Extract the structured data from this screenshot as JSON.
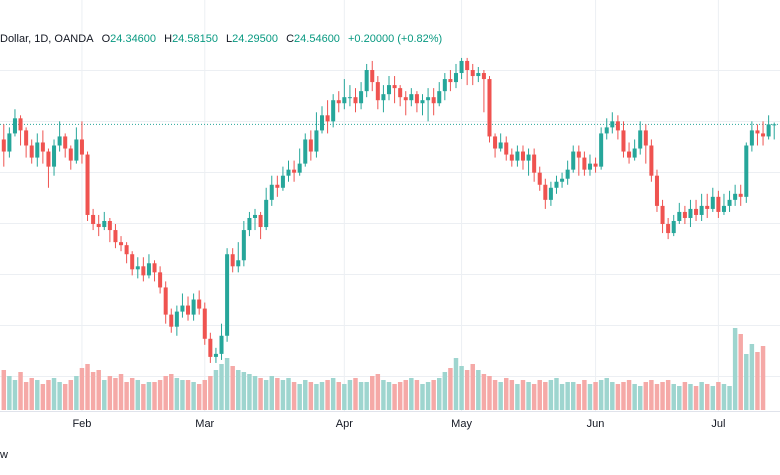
{
  "header": {
    "symbol": "Dollar, 1D, OANDA",
    "open_label": "O",
    "open": "24.34600",
    "high_label": "H",
    "high": "24.58150",
    "low_label": "L",
    "low": "24.29500",
    "close_label": "C",
    "close": "24.54600",
    "change": "+0.20000 (+0.82%)"
  },
  "footer": {
    "text": "w"
  },
  "colors": {
    "up": "#26a69a",
    "down": "#ef5350",
    "vol_up": "#9ed5cf",
    "vol_down": "#f5a9a7",
    "grid": "#eceff3",
    "last_price_line": "#26a69a"
  },
  "chart_data": {
    "type": "candlestick",
    "x_axis": {
      "tick_labels": [
        "Feb",
        "Mar",
        "Apr",
        "May",
        "Jun",
        "Jul"
      ],
      "tick_index": [
        14,
        36,
        61,
        82,
        106,
        128
      ]
    },
    "y_range": [
      20.45,
      25.45
    ],
    "last_price": 24.55,
    "candles": [
      [
        24.3,
        24.1,
        24.55,
        23.85
      ],
      [
        24.1,
        24.4,
        24.5,
        24.0
      ],
      [
        24.4,
        24.65,
        24.8,
        24.35
      ],
      [
        24.65,
        24.45,
        24.7,
        24.2
      ],
      [
        24.45,
        24.2,
        24.5,
        24.0
      ],
      [
        24.2,
        24.0,
        24.3,
        23.9
      ],
      [
        24.0,
        24.25,
        24.4,
        23.85
      ],
      [
        24.25,
        24.1,
        24.45,
        23.9
      ],
      [
        24.1,
        23.85,
        24.15,
        23.5
      ],
      [
        23.85,
        24.2,
        24.3,
        23.7
      ],
      [
        24.2,
        24.35,
        24.6,
        24.1
      ],
      [
        24.35,
        24.15,
        24.4,
        24.0
      ],
      [
        24.15,
        23.95,
        24.2,
        23.8
      ],
      [
        23.95,
        24.3,
        24.5,
        23.9
      ],
      [
        24.3,
        24.05,
        24.6,
        23.9
      ],
      [
        24.05,
        23.05,
        24.1,
        22.95
      ],
      [
        23.05,
        22.9,
        23.15,
        22.8
      ],
      [
        22.9,
        22.85,
        23.05,
        22.7
      ],
      [
        22.85,
        22.95,
        23.1,
        22.8
      ],
      [
        22.95,
        22.8,
        23.0,
        22.6
      ],
      [
        22.8,
        22.6,
        22.9,
        22.5
      ],
      [
        22.6,
        22.55,
        22.7,
        22.45
      ],
      [
        22.55,
        22.4,
        22.6,
        22.25
      ],
      [
        22.4,
        22.15,
        22.45,
        22.05
      ],
      [
        22.15,
        22.2,
        22.35,
        22.0
      ],
      [
        22.2,
        22.05,
        22.35,
        21.95
      ],
      [
        22.05,
        22.25,
        22.4,
        22.0
      ],
      [
        22.25,
        22.1,
        22.3,
        21.95
      ],
      [
        22.1,
        21.85,
        22.2,
        21.75
      ],
      [
        21.85,
        21.4,
        21.95,
        21.25
      ],
      [
        21.4,
        21.2,
        21.5,
        21.1
      ],
      [
        21.2,
        21.45,
        21.55,
        21.05
      ],
      [
        21.45,
        21.55,
        21.75,
        21.35
      ],
      [
        21.55,
        21.4,
        21.7,
        21.3
      ],
      [
        21.4,
        21.65,
        21.75,
        21.3
      ],
      [
        21.65,
        21.5,
        21.8,
        21.4
      ],
      [
        21.5,
        21.0,
        21.6,
        20.9
      ],
      [
        21.0,
        20.7,
        21.1,
        20.6
      ],
      [
        20.7,
        20.75,
        20.85,
        20.6
      ],
      [
        20.75,
        21.05,
        21.25,
        20.65
      ],
      [
        21.05,
        22.4,
        22.5,
        20.95
      ],
      [
        22.4,
        22.2,
        22.5,
        22.1
      ],
      [
        22.2,
        22.3,
        22.6,
        22.1
      ],
      [
        22.3,
        22.8,
        22.95,
        22.2
      ],
      [
        22.8,
        23.0,
        23.1,
        22.7
      ],
      [
        23.0,
        23.05,
        23.15,
        22.8
      ],
      [
        23.05,
        22.85,
        23.1,
        22.65
      ],
      [
        22.85,
        23.3,
        23.5,
        22.8
      ],
      [
        23.3,
        23.55,
        23.7,
        23.2
      ],
      [
        23.55,
        23.5,
        23.7,
        23.35
      ],
      [
        23.5,
        23.7,
        23.85,
        23.45
      ],
      [
        23.7,
        23.8,
        23.95,
        23.6
      ],
      [
        23.8,
        23.75,
        23.95,
        23.6
      ],
      [
        23.75,
        23.9,
        24.15,
        23.7
      ],
      [
        23.9,
        24.3,
        24.4,
        23.85
      ],
      [
        24.3,
        24.1,
        24.45,
        23.95
      ],
      [
        24.1,
        24.45,
        24.75,
        24.0
      ],
      [
        24.45,
        24.7,
        24.85,
        24.4
      ],
      [
        24.7,
        24.6,
        24.95,
        24.4
      ],
      [
        24.6,
        24.95,
        25.05,
        24.5
      ],
      [
        24.95,
        24.9,
        25.1,
        24.75
      ],
      [
        24.9,
        25.0,
        25.3,
        24.8
      ],
      [
        25.0,
        25.0,
        25.2,
        24.85
      ],
      [
        25.0,
        24.9,
        25.15,
        24.75
      ],
      [
        24.9,
        25.1,
        25.25,
        24.8
      ],
      [
        25.1,
        25.45,
        25.55,
        25.0
      ],
      [
        25.45,
        25.25,
        25.6,
        25.1
      ],
      [
        25.25,
        24.95,
        25.35,
        24.8
      ],
      [
        24.95,
        25.05,
        25.2,
        24.75
      ],
      [
        25.05,
        25.2,
        25.35,
        24.95
      ],
      [
        25.2,
        25.15,
        25.35,
        24.9
      ],
      [
        25.15,
        25.0,
        25.2,
        24.85
      ],
      [
        25.0,
        24.95,
        25.1,
        24.7
      ],
      [
        24.95,
        25.05,
        25.15,
        24.85
      ],
      [
        25.05,
        24.9,
        25.1,
        24.75
      ],
      [
        24.9,
        24.95,
        25.05,
        24.7
      ],
      [
        24.95,
        25.0,
        25.15,
        24.6
      ],
      [
        25.0,
        24.9,
        25.15,
        24.7
      ],
      [
        24.9,
        25.1,
        25.25,
        24.85
      ],
      [
        25.1,
        25.3,
        25.4,
        24.95
      ],
      [
        25.3,
        25.25,
        25.45,
        25.1
      ],
      [
        25.25,
        25.4,
        25.55,
        25.15
      ],
      [
        25.4,
        25.6,
        25.65,
        25.3
      ],
      [
        25.6,
        25.45,
        25.65,
        25.2
      ],
      [
        25.45,
        25.35,
        25.55,
        25.2
      ],
      [
        25.35,
        25.4,
        25.5,
        25.25
      ],
      [
        25.4,
        25.3,
        25.45,
        24.75
      ],
      [
        25.3,
        24.35,
        25.35,
        24.25
      ],
      [
        24.35,
        24.15,
        24.4,
        24.0
      ],
      [
        24.15,
        24.25,
        24.4,
        24.1
      ],
      [
        24.25,
        24.05,
        24.35,
        23.95
      ],
      [
        24.05,
        23.95,
        24.15,
        23.85
      ],
      [
        23.95,
        24.1,
        24.2,
        23.85
      ],
      [
        24.1,
        23.95,
        24.2,
        23.8
      ],
      [
        23.95,
        24.05,
        24.15,
        23.7
      ],
      [
        24.05,
        23.75,
        24.15,
        23.6
      ],
      [
        23.75,
        23.55,
        23.85,
        23.45
      ],
      [
        23.55,
        23.3,
        23.65,
        23.15
      ],
      [
        23.3,
        23.5,
        23.6,
        23.2
      ],
      [
        23.5,
        23.6,
        23.7,
        23.4
      ],
      [
        23.6,
        23.65,
        23.75,
        23.5
      ],
      [
        23.65,
        23.8,
        23.95,
        23.55
      ],
      [
        23.8,
        24.1,
        24.2,
        23.75
      ],
      [
        24.1,
        24.0,
        24.2,
        23.7
      ],
      [
        24.0,
        23.8,
        24.1,
        23.7
      ],
      [
        23.8,
        23.9,
        24.05,
        23.7
      ],
      [
        23.9,
        23.85,
        24.0,
        23.75
      ],
      [
        23.85,
        24.4,
        24.5,
        23.8
      ],
      [
        24.4,
        24.5,
        24.65,
        24.3
      ],
      [
        24.5,
        24.6,
        24.75,
        24.4
      ],
      [
        24.6,
        24.45,
        24.7,
        24.3
      ],
      [
        24.45,
        24.1,
        24.6,
        24.0
      ],
      [
        24.1,
        24.0,
        24.25,
        23.9
      ],
      [
        24.0,
        24.15,
        24.3,
        23.95
      ],
      [
        24.15,
        24.45,
        24.6,
        24.05
      ],
      [
        24.45,
        24.2,
        24.55,
        23.9
      ],
      [
        24.2,
        23.7,
        24.3,
        23.6
      ],
      [
        23.7,
        23.2,
        23.8,
        23.1
      ],
      [
        23.2,
        22.9,
        23.3,
        22.75
      ],
      [
        22.9,
        22.75,
        23.0,
        22.65
      ],
      [
        22.75,
        22.95,
        23.05,
        22.7
      ],
      [
        22.95,
        23.1,
        23.25,
        22.9
      ],
      [
        23.1,
        23.0,
        23.2,
        22.9
      ],
      [
        23.0,
        23.15,
        23.3,
        22.85
      ],
      [
        23.15,
        23.05,
        23.3,
        22.95
      ],
      [
        23.05,
        23.2,
        23.4,
        22.95
      ],
      [
        23.2,
        23.15,
        23.4,
        23.0
      ],
      [
        23.15,
        23.35,
        23.5,
        23.1
      ],
      [
        23.35,
        23.1,
        23.45,
        23.0
      ],
      [
        23.1,
        23.2,
        23.4,
        23.05
      ],
      [
        23.2,
        23.3,
        23.45,
        23.1
      ],
      [
        23.3,
        23.4,
        23.55,
        23.2
      ],
      [
        23.4,
        23.35,
        23.55,
        23.2
      ],
      [
        23.35,
        24.2,
        24.25,
        23.25
      ],
      [
        24.2,
        24.45,
        24.6,
        24.1
      ],
      [
        24.45,
        24.4,
        24.55,
        24.2
      ],
      [
        24.4,
        24.35,
        24.6,
        24.2
      ],
      [
        24.35,
        24.55,
        24.7,
        24.3
      ],
      [
        24.55,
        24.55,
        24.58,
        24.3
      ]
    ],
    "volume": [
      0.4,
      0.34,
      0.3,
      0.38,
      0.28,
      0.32,
      0.3,
      0.26,
      0.3,
      0.32,
      0.28,
      0.26,
      0.3,
      0.34,
      0.42,
      0.46,
      0.38,
      0.4,
      0.3,
      0.34,
      0.32,
      0.36,
      0.28,
      0.32,
      0.3,
      0.26,
      0.28,
      0.28,
      0.3,
      0.34,
      0.36,
      0.32,
      0.3,
      0.3,
      0.28,
      0.26,
      0.3,
      0.34,
      0.4,
      0.46,
      0.52,
      0.44,
      0.4,
      0.38,
      0.36,
      0.34,
      0.32,
      0.3,
      0.34,
      0.32,
      0.3,
      0.32,
      0.28,
      0.26,
      0.3,
      0.28,
      0.26,
      0.28,
      0.3,
      0.32,
      0.28,
      0.26,
      0.3,
      0.32,
      0.28,
      0.28,
      0.34,
      0.36,
      0.3,
      0.28,
      0.26,
      0.28,
      0.3,
      0.32,
      0.3,
      0.26,
      0.28,
      0.3,
      0.32,
      0.38,
      0.42,
      0.52,
      0.44,
      0.4,
      0.46,
      0.4,
      0.36,
      0.34,
      0.3,
      0.28,
      0.32,
      0.3,
      0.26,
      0.3,
      0.28,
      0.26,
      0.3,
      0.28,
      0.3,
      0.32,
      0.26,
      0.28,
      0.28,
      0.26,
      0.3,
      0.26,
      0.28,
      0.3,
      0.32,
      0.28,
      0.26,
      0.28,
      0.3,
      0.26,
      0.24,
      0.28,
      0.3,
      0.26,
      0.28,
      0.3,
      0.26,
      0.24,
      0.28,
      0.26,
      0.24,
      0.28,
      0.26,
      0.24,
      0.28,
      0.26,
      0.24,
      0.82,
      0.76,
      0.56,
      0.66,
      0.58,
      0.64
    ]
  }
}
